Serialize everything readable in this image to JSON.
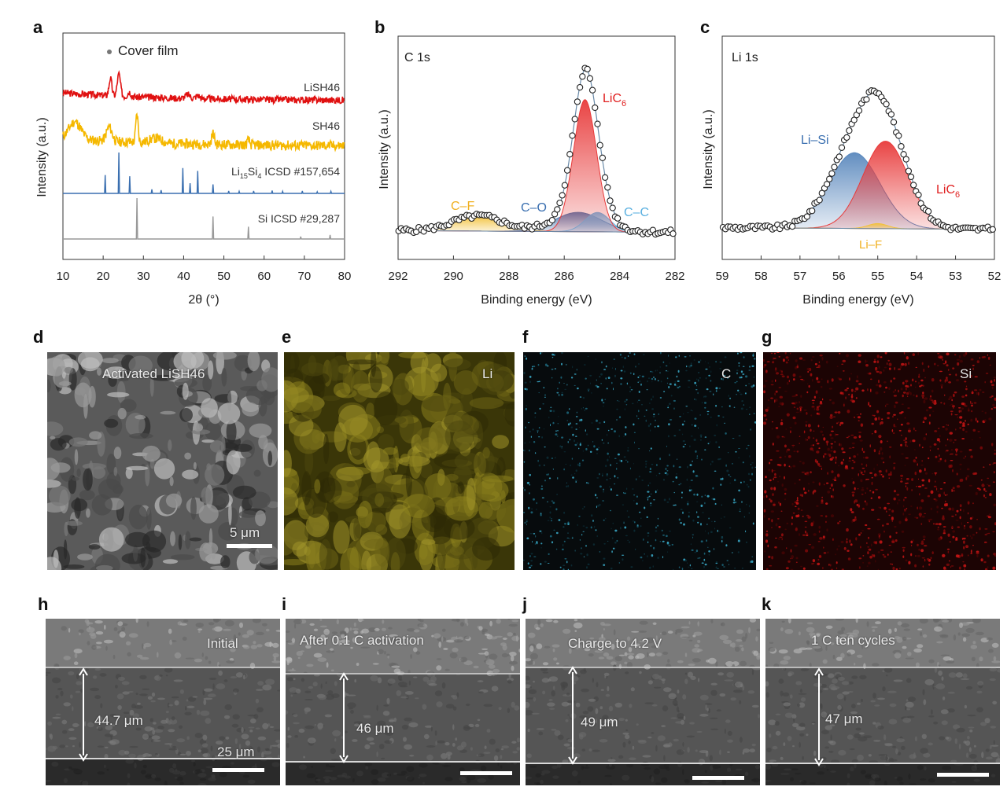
{
  "panel_letters": {
    "a": "a",
    "b": "b",
    "c": "c",
    "d": "d",
    "e": "e",
    "f": "f",
    "g": "g",
    "h": "h",
    "i": "i",
    "j": "j",
    "k": "k"
  },
  "chart_data": [
    {
      "id": "a",
      "type": "line",
      "xlabel": "2θ (°)",
      "ylabel": "Intensity (a.u.)",
      "xlim": [
        10,
        80
      ],
      "xticks": [
        "10",
        "20",
        "30",
        "40",
        "50",
        "60",
        "70",
        "80"
      ],
      "legend_marker": "Cover film",
      "colors": {
        "LiSH46": "#e01010",
        "SH46": "#f5b800",
        "Li15Si4": "#3a6fb0",
        "Si": "#999999",
        "marker": "#777777"
      },
      "series": [
        {
          "name": "LiSH46",
          "label": "LiSH46"
        },
        {
          "name": "SH46",
          "label": "SH46"
        },
        {
          "name": "Li15Si4",
          "label_main": "Li",
          "label_sub1": "15",
          "label_mid": "Si",
          "label_sub2": "4",
          "label_rest": " ICSD #157,654",
          "peaks": [
            [
              20.5,
              0.45
            ],
            [
              23.9,
              1.0
            ],
            [
              26.6,
              0.42
            ],
            [
              32.1,
              0.1
            ],
            [
              34.4,
              0.08
            ],
            [
              39.8,
              0.62
            ],
            [
              41.6,
              0.25
            ],
            [
              43.5,
              0.55
            ],
            [
              47.3,
              0.22
            ],
            [
              51.2,
              0.06
            ],
            [
              53.8,
              0.05
            ],
            [
              57.4,
              0.06
            ],
            [
              62.0,
              0.07
            ],
            [
              64.6,
              0.05
            ],
            [
              69.5,
              0.06
            ],
            [
              73.2,
              0.04
            ],
            [
              76.6,
              0.05
            ]
          ]
        },
        {
          "name": "Si",
          "label": "Si ICSD #29,287",
          "peaks": [
            [
              28.4,
              1.0
            ],
            [
              47.3,
              0.55
            ],
            [
              56.1,
              0.3
            ],
            [
              69.1,
              0.06
            ],
            [
              76.4,
              0.1
            ]
          ]
        }
      ]
    },
    {
      "id": "b",
      "type": "line",
      "title": "C 1s",
      "xlabel": "Binding energy (eV)",
      "ylabel": "Intensity (a.u.)",
      "xlim": [
        292,
        282
      ],
      "xticks": [
        "292",
        "290",
        "288",
        "286",
        "284",
        "282"
      ],
      "components": [
        {
          "name": "C–F",
          "label": "C–F",
          "center": 289.1,
          "height": 0.085,
          "width": 0.9,
          "color": "#f2c13a"
        },
        {
          "name": "C–O",
          "label": "C–O",
          "center": 285.5,
          "height": 0.11,
          "width": 0.85,
          "color": "#4a78b0"
        },
        {
          "name": "C–C",
          "label": "C–C",
          "center": 284.8,
          "height": 0.11,
          "width": 0.45,
          "color": "#66b8e8"
        },
        {
          "name": "LiC6",
          "label_main": "LiC",
          "label_sub": "6",
          "center": 285.25,
          "height": 0.75,
          "width": 0.42,
          "color": "#e83a3a"
        }
      ],
      "envelope_color": "#6a8aa8"
    },
    {
      "id": "c",
      "type": "line",
      "title": "Li 1s",
      "xlabel": "Binding energy (eV)",
      "ylabel": "Intensity (a.u.)",
      "xlim": [
        59,
        52
      ],
      "xticks": [
        "59",
        "58",
        "57",
        "56",
        "55",
        "54",
        "53",
        "52"
      ],
      "components": [
        {
          "name": "Li–Si",
          "label": "Li–Si",
          "center": 55.6,
          "height": 0.45,
          "width": 0.65,
          "color": "#5a88bd"
        },
        {
          "name": "LiC6",
          "label_main": "LiC",
          "label_sub": "6",
          "center": 54.8,
          "height": 0.52,
          "width": 0.58,
          "color": "#e83a3a"
        },
        {
          "name": "Li–F",
          "label": "Li–F",
          "center": 55.0,
          "height": 0.03,
          "width": 0.25,
          "color": "#f2c13a"
        }
      ],
      "envelope_color": "#6a8aa8"
    }
  ],
  "images": {
    "d": {
      "label": "Activated LiSH46",
      "scale": "5 μm"
    },
    "e": {
      "label": "Li",
      "color": "#8a7a10"
    },
    "f": {
      "label": "C",
      "color": "#3fb8d8"
    },
    "g": {
      "label": "Si",
      "color": "#e01818"
    },
    "h": {
      "label": "Initial",
      "thickness": "44.7 μm",
      "scale": "25 μm"
    },
    "i": {
      "label": "After 0.1 C activation",
      "thickness": "46 μm"
    },
    "j": {
      "label": "Charge to 4.2 V",
      "thickness": "49 μm"
    },
    "k": {
      "label": "1 C ten cycles",
      "thickness": "47 μm"
    }
  }
}
